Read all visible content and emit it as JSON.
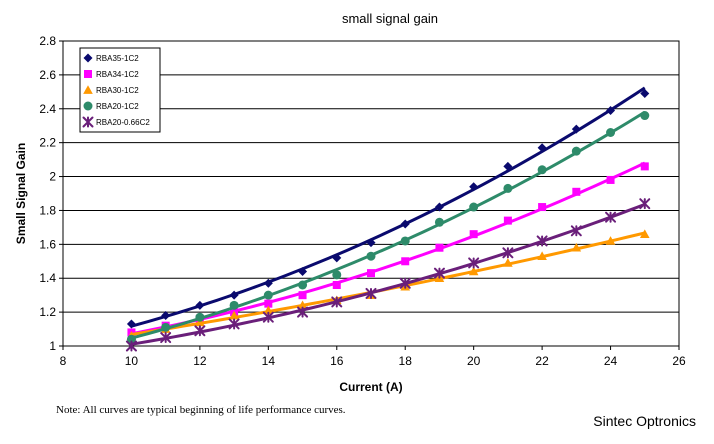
{
  "chart_data": {
    "type": "scatter",
    "title": "small signal gain",
    "xlabel": "Current (A)",
    "ylabel": "Small Signal Gain",
    "xlim": [
      8,
      26
    ],
    "ylim": [
      1,
      2.8
    ],
    "xticks": [
      "8",
      "10",
      "12",
      "14",
      "16",
      "18",
      "20",
      "22",
      "24",
      "26"
    ],
    "yticks": [
      "1",
      "1.2",
      "1.4",
      "1.6",
      "1.8",
      "2",
      "2.2",
      "2.4",
      "2.6",
      "2.8"
    ],
    "grid": true,
    "legend_position": "top-left",
    "x": [
      10,
      11,
      12,
      13,
      14,
      15,
      16,
      17,
      18,
      19,
      20,
      21,
      22,
      23,
      24,
      25
    ],
    "series": [
      {
        "name": "RBA35-1C2",
        "color": "#0a0a6e",
        "marker": "diamond",
        "values": [
          1.13,
          1.18,
          1.24,
          1.3,
          1.37,
          1.44,
          1.52,
          1.61,
          1.72,
          1.82,
          1.94,
          2.06,
          2.17,
          2.28,
          2.39,
          2.49
        ]
      },
      {
        "name": "RBA34-1C2",
        "color": "#ff00ff",
        "marker": "square",
        "values": [
          1.08,
          1.12,
          1.16,
          1.2,
          1.25,
          1.3,
          1.36,
          1.43,
          1.5,
          1.58,
          1.66,
          1.74,
          1.82,
          1.91,
          1.98,
          2.06
        ]
      },
      {
        "name": "RBA30-1C2",
        "color": "#ff9900",
        "marker": "triangle",
        "values": [
          1.06,
          1.1,
          1.14,
          1.18,
          1.21,
          1.24,
          1.27,
          1.3,
          1.35,
          1.4,
          1.44,
          1.49,
          1.53,
          1.58,
          1.62,
          1.66
        ]
      },
      {
        "name": "RBA20-1C2",
        "color": "#2e8b6a",
        "marker": "circle",
        "values": [
          1.04,
          1.11,
          1.17,
          1.24,
          1.3,
          1.36,
          1.42,
          1.53,
          1.62,
          1.73,
          1.82,
          1.93,
          2.04,
          2.15,
          2.26,
          2.36
        ]
      },
      {
        "name": "RBA20-0.66C2",
        "color": "#6a1f7a",
        "marker": "star",
        "values": [
          1.0,
          1.05,
          1.09,
          1.13,
          1.17,
          1.2,
          1.26,
          1.31,
          1.37,
          1.43,
          1.49,
          1.55,
          1.62,
          1.68,
          1.76,
          1.84
        ]
      }
    ]
  },
  "footer": {
    "note": "Note: All curves are typical beginning of life performance curves.",
    "brand": "Sintec Optronics"
  }
}
